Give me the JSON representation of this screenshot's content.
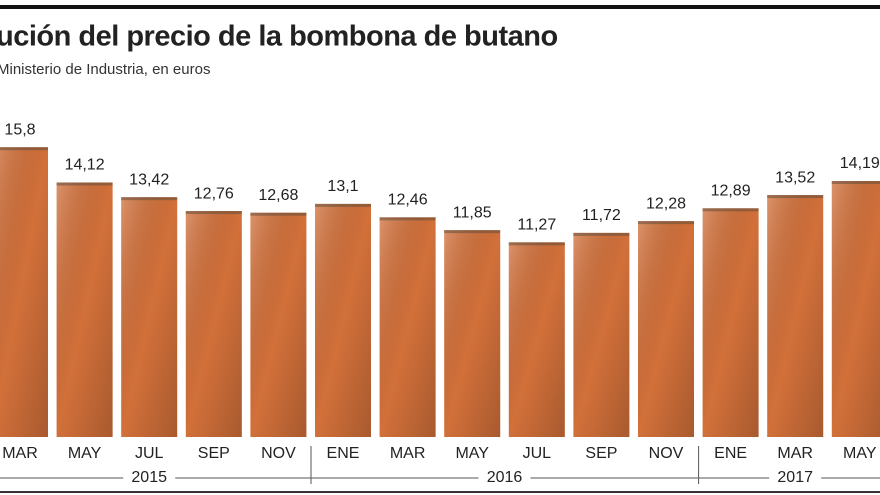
{
  "chart_data": {
    "type": "bar",
    "title": "ución del precio de la bombona de butano",
    "subtitle": "Ministerio de Industria, en euros",
    "categories": [
      "MAR",
      "MAY",
      "JUL",
      "SEP",
      "NOV",
      "ENE",
      "MAR",
      "MAY",
      "JUL",
      "SEP",
      "NOV",
      "ENE",
      "MAR",
      "MAY"
    ],
    "years": [
      "2015",
      "2015",
      "2015",
      "2015",
      "2015",
      "2016",
      "2016",
      "2016",
      "2016",
      "2016",
      "2016",
      "2017",
      "2017",
      "2017"
    ],
    "values": [
      15.8,
      14.12,
      13.42,
      12.76,
      12.68,
      13.1,
      12.46,
      11.85,
      11.27,
      11.72,
      12.28,
      12.89,
      13.52,
      14.19
    ],
    "value_labels": [
      "15,8",
      "14,12",
      "13,42",
      "12,76",
      "12,68",
      "13,1",
      "12,46",
      "11,85",
      "11,27",
      "11,72",
      "12,28",
      "12,89",
      "13,52",
      "14,19"
    ],
    "color": "#d2703a",
    "ylim": [
      2,
      17
    ]
  }
}
